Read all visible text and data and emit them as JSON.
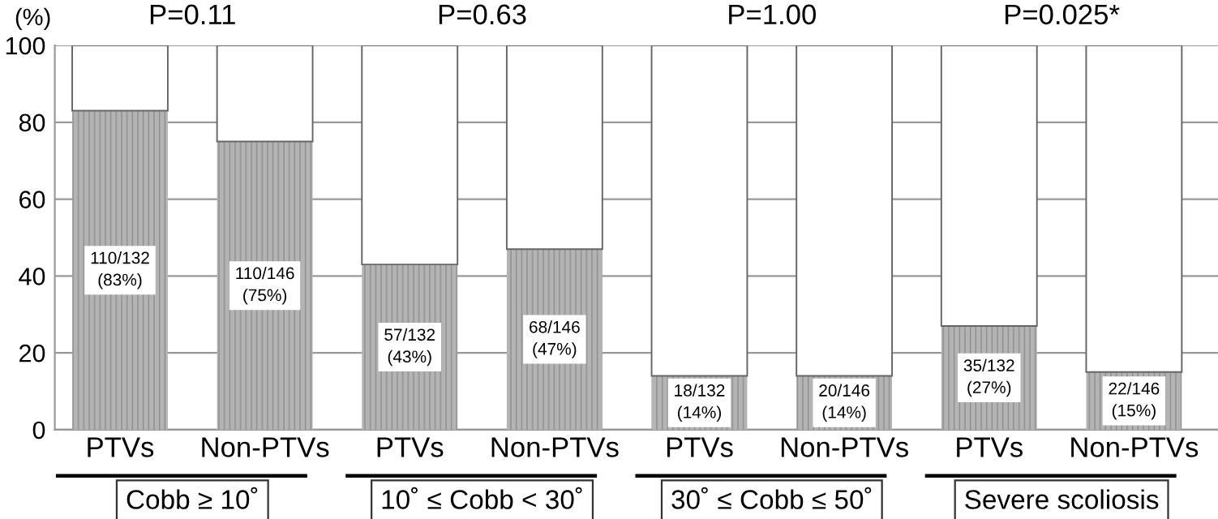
{
  "chart_data": {
    "type": "bar",
    "stacked": true,
    "ylabel": "(%)",
    "categories": [
      "PTVs",
      "Non-PTVs",
      "PTVs",
      "Non-PTVs",
      "PTVs",
      "Non-PTVs",
      "PTVs",
      "Non-PTVs"
    ],
    "series": [
      {
        "color": "#b4b4b4",
        "values": [
          83,
          75,
          43,
          47,
          14,
          14,
          27,
          15
        ],
        "value_labels": [
          "110/132\n(83%)",
          "110/146\n(75%)",
          "57/132\n(43%)",
          "68/146\n(47%)",
          "18/132\n(14%)",
          "20/146\n(14%)",
          "35/132\n(27%)",
          "22/146\n(15%)"
        ]
      },
      {
        "color": "#ffffff",
        "values": [
          17,
          25,
          57,
          53,
          86,
          86,
          73,
          85
        ]
      }
    ],
    "ylim": [
      0,
      100
    ],
    "yticks": [
      0,
      20,
      40,
      60,
      80,
      100
    ],
    "grid": "y",
    "annotations": [
      "Cobb ≥ 10˚",
      "10˚ ≤ Cobb < 30˚",
      "30˚ ≤ Cobb ≤ 50˚",
      "Severe scoliosis",
      "P=0.11",
      "P=0.63",
      "P=1.00",
      "P=0.025*"
    ]
  }
}
